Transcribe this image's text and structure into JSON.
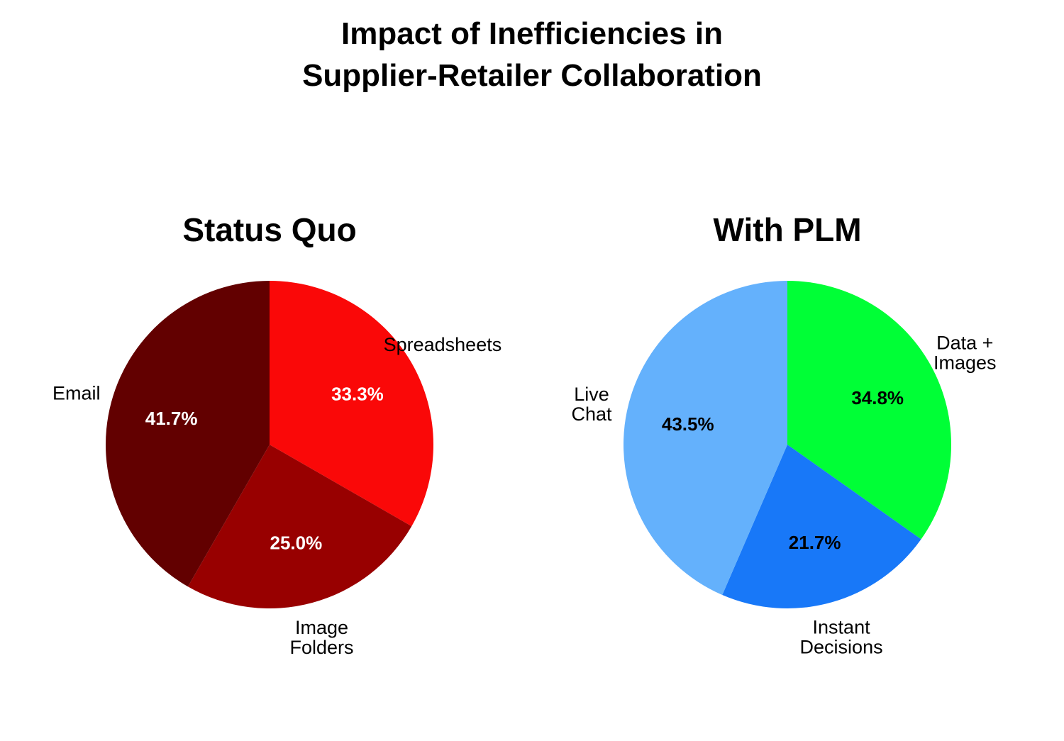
{
  "title_line1": "Impact of Inefficiencies in",
  "title_line2": "Supplier-Retailer Collaboration",
  "chart_data": [
    {
      "type": "pie",
      "title": "Status Quo",
      "start_angle_deg": 90,
      "direction": "clockwise",
      "label_color": "#ffffff",
      "slices": [
        {
          "label": [
            "Spreadsheets"
          ],
          "value": 33.3,
          "display": "33.3%",
          "color": "#fa0808"
        },
        {
          "label": [
            "Image",
            "Folders"
          ],
          "value": 25.0,
          "display": "25.0%",
          "color": "#980000"
        },
        {
          "label": [
            "Email"
          ],
          "value": 41.7,
          "display": "41.7%",
          "color": "#620000"
        }
      ]
    },
    {
      "type": "pie",
      "title": "With PLM",
      "start_angle_deg": 90,
      "direction": "clockwise",
      "label_color": "#000000",
      "slices": [
        {
          "label": [
            "Data +",
            "Images"
          ],
          "value": 34.8,
          "display": "34.8%",
          "color": "#00ff36"
        },
        {
          "label": [
            "Instant",
            "Decisions"
          ],
          "value": 21.7,
          "display": "21.7%",
          "color": "#1878f8"
        },
        {
          "label": [
            "Live",
            "Chat"
          ],
          "value": 43.5,
          "display": "43.5%",
          "color": "#64b1fc"
        }
      ]
    }
  ]
}
